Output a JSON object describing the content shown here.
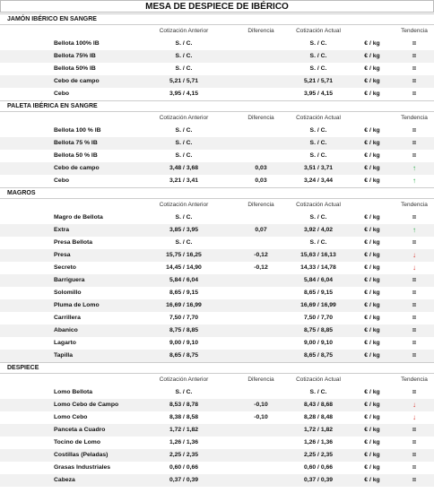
{
  "title": "MESA DE DESPIECE DE IBÉRICO",
  "sections": [
    {
      "title": "JAMÓN IBÉRICO EN SANGRE",
      "columns": [
        "Cotización Anterior",
        "Diferencia",
        "Cotización Actual",
        "Tendencia"
      ],
      "rows": [
        [
          "Bellota 100% IB",
          "S. / C.",
          null,
          "S. / C.",
          "€ / kg",
          "="
        ],
        [
          "Bellota 75% IB",
          "S. / C.",
          null,
          "S. / C.",
          "€ / kg",
          "="
        ],
        [
          "Bellota 50% IB",
          "S. / C.",
          null,
          "S. / C.",
          "€ / kg",
          "="
        ],
        [
          "Cebo de campo",
          "5,21 / 5,71",
          null,
          "5,21 / 5,71",
          "€ / kg",
          "="
        ],
        [
          "Cebo",
          "3,95 / 4,15",
          null,
          "3,95 / 4,15",
          "€ / kg",
          "="
        ]
      ]
    },
    {
      "title": "PALETA IBÉRICA EN SANGRE",
      "columns": [
        "Cotización Anterior",
        "Diferencia",
        "Cotización Actual",
        "Tendencia"
      ],
      "rows": [
        [
          "Bellota 100 % IB",
          "S. / C.",
          null,
          "S. / C.",
          "€ / kg",
          "="
        ],
        [
          "Bellota 75 % IB",
          "S. / C.",
          null,
          "S. / C.",
          "€ / kg",
          "="
        ],
        [
          "Bellota 50 % IB",
          "S. / C.",
          null,
          "S. / C.",
          "€ / kg",
          "="
        ],
        [
          "Cebo de campo",
          "3,48 / 3,68",
          "0,03",
          "3,51 / 3,71",
          "€ / kg",
          "↑"
        ],
        [
          "Cebo",
          "3,21 / 3,41",
          "0,03",
          "3,24 / 3,44",
          "€ / kg",
          "↑"
        ]
      ]
    },
    {
      "title": "MAGROS",
      "columns": [
        "Cotización Anterior",
        "Diferencia",
        "Cotización Actual",
        "Tendencia"
      ],
      "rows": [
        [
          "Magro de Bellota",
          "S. / C.",
          null,
          "S. / C.",
          "€ / kg",
          "="
        ],
        [
          "Extra",
          "3,85 / 3,95",
          "0,07",
          "3,92 / 4,02",
          "€ / kg",
          "↑"
        ],
        [
          "Presa Bellota",
          "S. / C.",
          null,
          "S. / C.",
          "€ / kg",
          "="
        ],
        [
          "Presa",
          "15,75 / 16,25",
          "-0,12",
          "15,63 / 16,13",
          "€ / kg",
          "↓"
        ],
        [
          "Secreto",
          "14,45 / 14,90",
          "-0,12",
          "14,33 / 14,78",
          "€ / kg",
          "↓"
        ],
        [
          "Barriguera",
          "5,84 / 6,04",
          null,
          "5,84 / 6,04",
          "€ / kg",
          "="
        ],
        [
          "Solomillo",
          "8,65 / 9,15",
          null,
          "8,65 / 9,15",
          "€ / kg",
          "="
        ],
        [
          "Pluma de Lomo",
          "16,69 / 16,99",
          null,
          "16,69 / 16,99",
          "€ / kg",
          "="
        ],
        [
          "Carrillera",
          "7,50 / 7,70",
          null,
          "7,50 / 7,70",
          "€ / kg",
          "="
        ],
        [
          "Abanico",
          "8,75 / 8,85",
          null,
          "8,75 / 8,85",
          "€ / kg",
          "="
        ],
        [
          "Lagarto",
          "9,00 / 9,10",
          null,
          "9,00 / 9,10",
          "€ / kg",
          "="
        ],
        [
          "Tapilla",
          "8,65 / 8,75",
          null,
          "8,65 / 8,75",
          "€ / kg",
          "="
        ]
      ]
    },
    {
      "title": "DESPIECE",
      "columns": [
        "Cotización Anterior",
        "Diferencia",
        "Cotización Actual",
        "Tendencia"
      ],
      "rows": [
        [
          "Lomo Bellota",
          "S. / C.",
          null,
          "S. / C.",
          "€ / kg",
          "="
        ],
        [
          "Lomo Cebo de Campo",
          "8,53 / 8,78",
          "-0,10",
          "8,43 / 8,68",
          "€ / kg",
          "↓"
        ],
        [
          "Lomo Cebo",
          "8,38 / 8,58",
          "-0,10",
          "8,28 / 8,48",
          "€ / kg",
          "↓"
        ],
        [
          "Panceta a Cuadro",
          "1,72 / 1,82",
          null,
          "1,72 / 1,82",
          "€ / kg",
          "="
        ],
        [
          "Tocino de Lomo",
          "1,26 / 1,36",
          null,
          "1,26 / 1,36",
          "€ / kg",
          "="
        ],
        [
          "Costillas (Peladas)",
          "2,25 / 2,35",
          null,
          "2,25 / 2,35",
          "€ / kg",
          "="
        ],
        [
          "Grasas Industriales",
          "0,60 / 0,66",
          null,
          "0,60 / 0,66",
          "€ / kg",
          "="
        ],
        [
          "Cabeza",
          "0,37 / 0,39",
          null,
          "0,37 / 0,39",
          "€ / kg",
          "="
        ]
      ]
    }
  ]
}
